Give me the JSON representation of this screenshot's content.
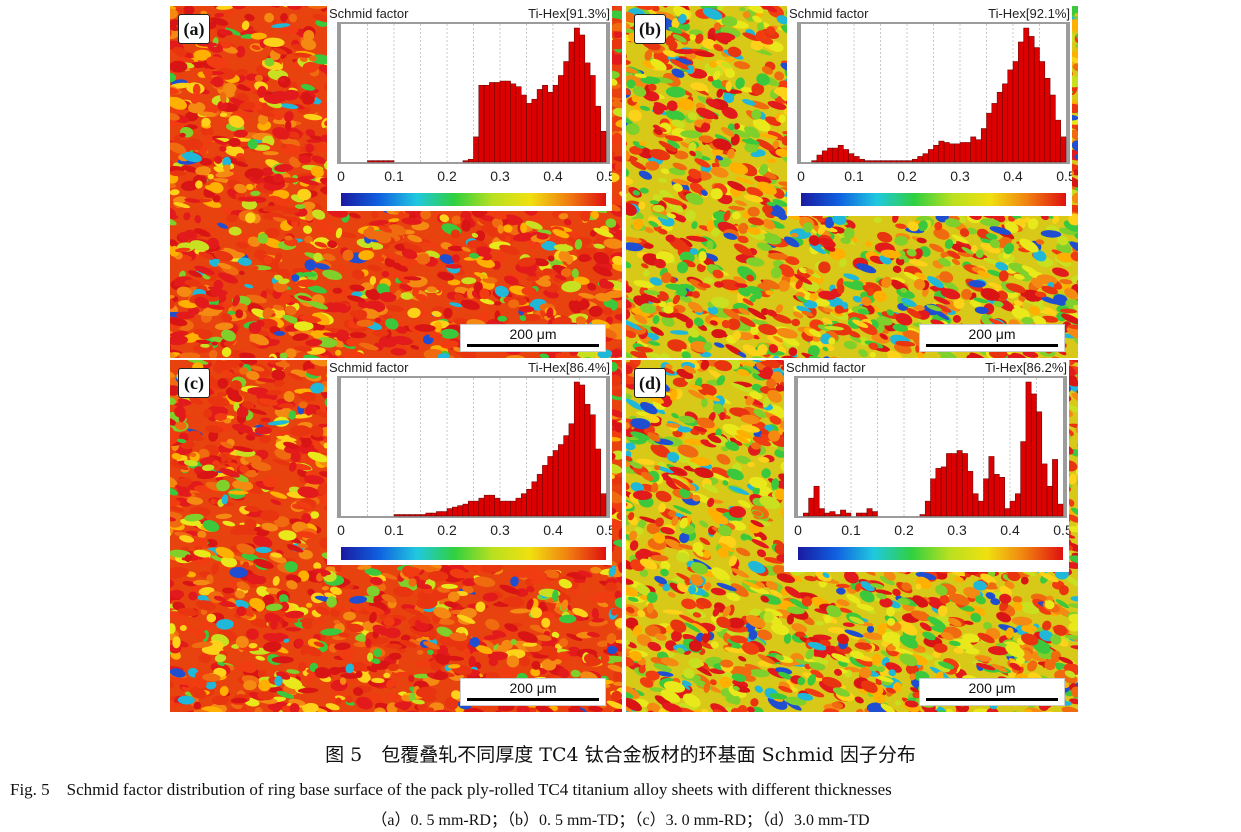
{
  "panels": [
    {
      "id": "a",
      "label": "(a)",
      "inset_title": "Schmid factor",
      "inset_phase": "Ti-Hex[91.3%]",
      "scale": "200 μm",
      "dominant": "red"
    },
    {
      "id": "b",
      "label": "(b)",
      "inset_title": "Schmid factor",
      "inset_phase": "Ti-Hex[92.1%]",
      "scale": "200 μm",
      "dominant": "mixed"
    },
    {
      "id": "c",
      "label": "(c)",
      "inset_title": "Schmid factor",
      "inset_phase": "Ti-Hex[86.4%]",
      "scale": "200 μm",
      "dominant": "red"
    },
    {
      "id": "d",
      "label": "(d)",
      "inset_title": "Schmid factor",
      "inset_phase": "Ti-Hex[86.2%]",
      "scale": "200 μm",
      "dominant": "mixed"
    }
  ],
  "chart_data": [
    {
      "type": "bar",
      "title": "Schmid factor",
      "xlabel": "",
      "ylabel": "",
      "xlim": [
        0,
        0.5
      ],
      "xticks": [
        "0",
        "0.1",
        "0.2",
        "0.3",
        "0.4",
        "0.5"
      ],
      "bin_width": 0.01,
      "values": [
        0,
        0,
        0,
        0,
        0,
        1,
        1,
        1,
        1,
        1,
        0,
        0,
        0,
        0,
        0,
        0,
        0,
        0,
        0,
        0,
        0,
        0,
        0,
        1,
        2,
        18,
        55,
        55,
        57,
        57,
        58,
        58,
        56,
        54,
        48,
        42,
        45,
        52,
        55,
        50,
        55,
        62,
        72,
        86,
        96,
        91,
        71,
        62,
        40,
        22
      ]
    },
    {
      "type": "bar",
      "title": "Schmid factor",
      "xlabel": "",
      "ylabel": "",
      "xlim": [
        0,
        0.5
      ],
      "xticks": [
        "0",
        "0.1",
        "0.2",
        "0.3",
        "0.4",
        "0.5"
      ],
      "bin_width": 0.01,
      "values": [
        0,
        0,
        1,
        5,
        8,
        10,
        10,
        12,
        9,
        6,
        4,
        2,
        1,
        1,
        1,
        1,
        1,
        1,
        1,
        1,
        1,
        2,
        4,
        6,
        9,
        12,
        15,
        14,
        13,
        13,
        14,
        14,
        18,
        16,
        24,
        35,
        42,
        50,
        56,
        66,
        72,
        86,
        96,
        90,
        82,
        72,
        60,
        48,
        30,
        18
      ]
    },
    {
      "type": "bar",
      "title": "Schmid factor",
      "xlabel": "",
      "ylabel": "",
      "xlim": [
        0,
        0.5
      ],
      "xticks": [
        "0",
        "0.1",
        "0.2",
        "0.3",
        "0.4",
        "0.5"
      ],
      "bin_width": 0.01,
      "values": [
        0,
        0,
        0,
        0,
        0,
        0,
        0,
        0,
        0,
        0,
        1,
        1,
        1,
        1,
        1,
        1,
        2,
        2,
        3,
        3,
        5,
        6,
        7,
        8,
        10,
        10,
        12,
        14,
        14,
        12,
        10,
        10,
        10,
        12,
        15,
        18,
        23,
        28,
        34,
        40,
        44,
        48,
        54,
        62,
        90,
        88,
        75,
        68,
        45,
        15
      ]
    },
    {
      "type": "bar",
      "title": "Schmid factor",
      "xlabel": "",
      "ylabel": "",
      "xlim": [
        0,
        0.5
      ],
      "xticks": [
        "0",
        "0.1",
        "0.2",
        "0.3",
        "0.4",
        "0.5"
      ],
      "bin_width": 0.01,
      "values": [
        0,
        2,
        12,
        20,
        5,
        2,
        3,
        1,
        4,
        2,
        0,
        2,
        2,
        5,
        3,
        0,
        0,
        0,
        0,
        0,
        0,
        0,
        0,
        1,
        10,
        25,
        32,
        33,
        42,
        42,
        44,
        42,
        30,
        15,
        10,
        25,
        40,
        28,
        26,
        5,
        10,
        15,
        50,
        90,
        82,
        70,
        35,
        20,
        38,
        8
      ]
    }
  ],
  "caption": {
    "zh": "图 5　包覆叠轧不同厚度 TC4 钛合金板材的环基面 Schmid 因子分布",
    "en": "Fig. 5　Schmid factor distribution of ring base surface of the pack ply-rolled TC4 titanium alloy sheets with different thicknesses",
    "sub": "（a）0. 5 mm-RD；（b）0. 5 mm-TD；（c）3. 0 mm-RD；（d）3.0 mm-TD"
  },
  "colors": {
    "bar": "#dd0000",
    "bar_edge": "#600000",
    "frame": "#9c9c9c"
  }
}
